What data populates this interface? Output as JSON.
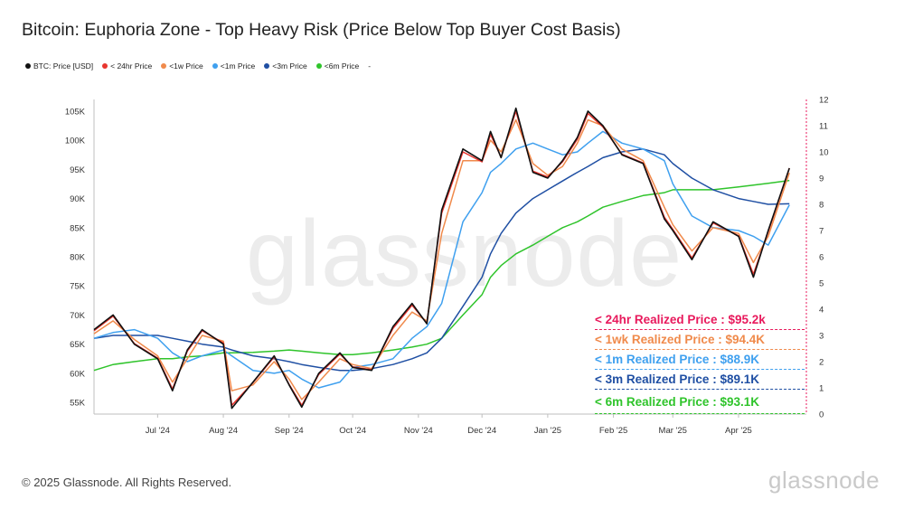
{
  "title": "Bitcoin: Euphoria Zone - Top Heavy Risk (Price Below Top Buyer Cost Basis)",
  "legend": [
    {
      "label": "BTC: Price [USD]",
      "color": "#111111"
    },
    {
      "label": "< 24hr Price",
      "color": "#e8352e"
    },
    {
      "label": "<1w Price",
      "color": "#f08a4b"
    },
    {
      "label": "<1m Price",
      "color": "#3fa0ef"
    },
    {
      "label": "<3m Price",
      "color": "#1f4fa3"
    },
    {
      "label": "<6m Price",
      "color": "#2fc42b"
    },
    {
      "label": "-",
      "color": "#ffffff"
    }
  ],
  "watermark": "glassnode",
  "footer": {
    "copyright": "© 2025 Glassnode. All Rights Reserved.",
    "logo": "glassnode"
  },
  "annotations": [
    {
      "text": "< 24hr Realized Price  : $95.2k",
      "color": "#e8195c"
    },
    {
      "text": "<  1wk Realized Price  : $94.4K",
      "color": "#f08a4b"
    },
    {
      "text": "< 1m Realized Price  : $88.9K",
      "color": "#3fa0ef"
    },
    {
      "text": "< 3m Realized Price  : $89.1K",
      "color": "#1f4fa3"
    },
    {
      "text": "< 6m Realized Price  : $93.1K",
      "color": "#2fc42b"
    }
  ],
  "chart_data": {
    "type": "line",
    "x": [
      "2024-06-01",
      "2024-06-10",
      "2024-06-20",
      "2024-07-01",
      "2024-07-08",
      "2024-07-15",
      "2024-07-22",
      "2024-08-01",
      "2024-08-05",
      "2024-08-15",
      "2024-08-25",
      "2024-09-01",
      "2024-09-07",
      "2024-09-15",
      "2024-09-25",
      "2024-10-01",
      "2024-10-10",
      "2024-10-20",
      "2024-10-29",
      "2024-11-05",
      "2024-11-12",
      "2024-11-22",
      "2024-12-01",
      "2024-12-05",
      "2024-12-10",
      "2024-12-17",
      "2024-12-25",
      "2025-01-01",
      "2025-01-08",
      "2025-01-15",
      "2025-01-20",
      "2025-01-27",
      "2025-02-05",
      "2025-02-15",
      "2025-02-25",
      "2025-03-01",
      "2025-03-10",
      "2025-03-20",
      "2025-04-01",
      "2025-04-08",
      "2025-04-15",
      "2025-04-25"
    ],
    "series": [
      {
        "name": "BTC: Price [USD]",
        "color": "#111111",
        "values": [
          67500,
          70000,
          65000,
          62500,
          57000,
          64000,
          67500,
          65000,
          54000,
          58500,
          63000,
          58000,
          54200,
          60000,
          63500,
          61000,
          60500,
          68000,
          72000,
          68500,
          88000,
          98500,
          96500,
          101500,
          97000,
          105500,
          94500,
          93500,
          96500,
          100500,
          105000,
          102500,
          97500,
          96000,
          86500,
          84500,
          79500,
          86000,
          83500,
          76500,
          84500,
          95200
        ]
      },
      {
        "name": "< 24hr Price",
        "color": "#e8352e",
        "values": [
          67300,
          69800,
          65100,
          62600,
          57300,
          63800,
          67300,
          65200,
          54500,
          58400,
          62800,
          58100,
          54500,
          59800,
          63300,
          61100,
          60600,
          67700,
          71700,
          68600,
          87500,
          98000,
          96300,
          101000,
          97100,
          105000,
          94700,
          93700,
          96300,
          100200,
          104600,
          102300,
          97600,
          96100,
          86800,
          84700,
          79800,
          85800,
          83600,
          77000,
          84300,
          95200
        ]
      },
      {
        "name": "<1w Price",
        "color": "#f08a4b",
        "values": [
          66800,
          69000,
          65800,
          63000,
          58500,
          62500,
          66500,
          65500,
          57000,
          58000,
          62000,
          59000,
          55500,
          58500,
          62500,
          61500,
          60800,
          66500,
          70500,
          69000,
          84000,
          96500,
          96500,
          100000,
          98000,
          103500,
          96000,
          94000,
          95500,
          99500,
          103500,
          102500,
          98500,
          96500,
          88500,
          85500,
          81000,
          85000,
          84000,
          79000,
          83500,
          94400
        ]
      },
      {
        "name": "<1m Price",
        "color": "#3fa0ef",
        "values": [
          66000,
          67000,
          67500,
          66000,
          63500,
          62000,
          63000,
          64000,
          63000,
          60500,
          60000,
          60500,
          59000,
          57500,
          58500,
          61000,
          61500,
          62500,
          66000,
          68000,
          72000,
          86000,
          91000,
          94500,
          96000,
          98500,
          99500,
          98500,
          97500,
          98000,
          99500,
          101500,
          99500,
          98500,
          96500,
          92500,
          87000,
          85000,
          84500,
          83500,
          82000,
          88900
        ]
      },
      {
        "name": "<3m Price",
        "color": "#1f4fa3",
        "values": [
          66000,
          66500,
          66500,
          66500,
          66000,
          65500,
          65000,
          64500,
          64000,
          63000,
          62500,
          62000,
          61500,
          61000,
          60500,
          60500,
          60800,
          61500,
          62500,
          63500,
          66000,
          71500,
          76500,
          80500,
          84000,
          87500,
          90000,
          91500,
          93000,
          94500,
          95500,
          97000,
          98000,
          98500,
          97500,
          96000,
          93500,
          91500,
          90000,
          89500,
          89000,
          89100
        ]
      },
      {
        "name": "<6m Price",
        "color": "#2fc42b",
        "values": [
          60500,
          61500,
          62000,
          62500,
          62500,
          62800,
          63000,
          63500,
          63500,
          63600,
          63800,
          64000,
          63800,
          63500,
          63200,
          63200,
          63500,
          64000,
          64500,
          65000,
          66000,
          70000,
          73500,
          76500,
          78500,
          80500,
          82000,
          83500,
          85000,
          86000,
          87000,
          88500,
          89500,
          90500,
          91000,
          91500,
          91500,
          91500,
          92000,
          92300,
          92600,
          93100
        ]
      }
    ],
    "ylim": [
      53000,
      107000
    ],
    "yticks": [
      "55K",
      "60K",
      "65K",
      "70K",
      "75K",
      "80K",
      "85K",
      "90K",
      "95K",
      "100K",
      "105K"
    ],
    "ytick_values": [
      55000,
      60000,
      65000,
      70000,
      75000,
      80000,
      85000,
      90000,
      95000,
      100000,
      105000
    ],
    "y2lim": [
      0,
      12
    ],
    "y2ticks": [
      "0",
      "1",
      "2",
      "3",
      "4",
      "5",
      "6",
      "7",
      "8",
      "9",
      "10",
      "11",
      "12"
    ],
    "xticks": [
      "Jul '24",
      "Aug '24",
      "Sep '24",
      "Oct '24",
      "Nov '24",
      "Dec '24",
      "Jan '25",
      "Feb '25",
      "Mar '25",
      "Apr '25"
    ],
    "xtick_dates": [
      "2024-07-01",
      "2024-08-01",
      "2024-09-01",
      "2024-10-01",
      "2024-11-01",
      "2024-12-01",
      "2025-01-01",
      "2025-02-01",
      "2025-03-01",
      "2025-04-01"
    ],
    "xlim": [
      "2024-06-01",
      "2025-05-03"
    ],
    "grid": false
  }
}
